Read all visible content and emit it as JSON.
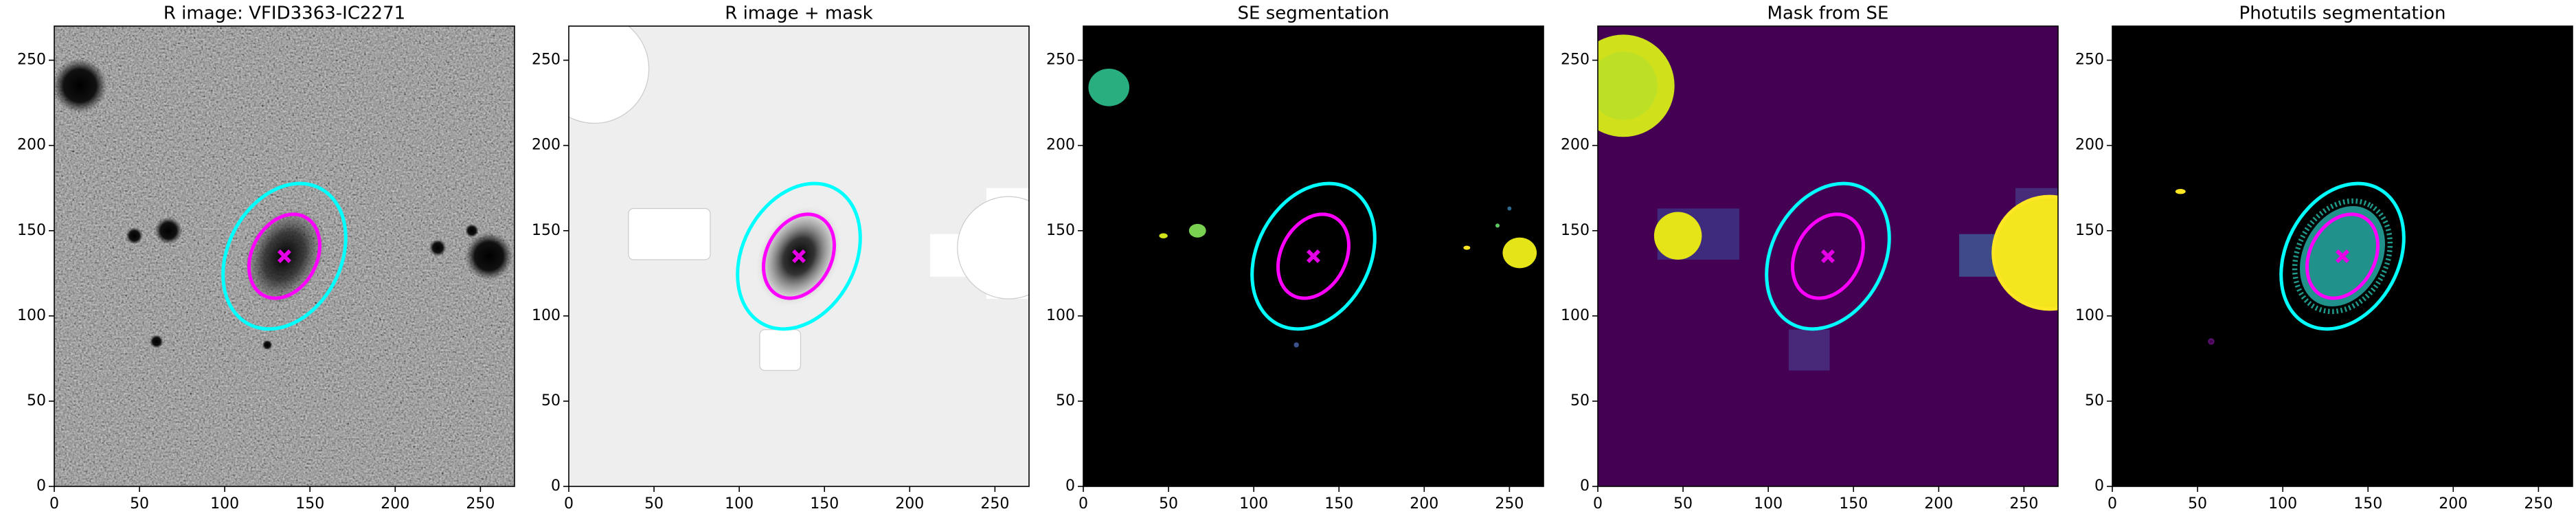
{
  "chart_data": [
    {
      "type": "image",
      "title": "R image: VFID3363-IC2271",
      "xlim": [
        0,
        270
      ],
      "ylim": [
        0,
        270
      ],
      "xticks": [
        0,
        50,
        100,
        150,
        200,
        250
      ],
      "yticks": [
        0,
        50,
        100,
        150,
        200,
        250
      ],
      "ellipses": [
        {
          "x": 135,
          "y": 135,
          "a": 45,
          "b": 33,
          "angle": 62,
          "color": "#00ffff"
        },
        {
          "x": 135,
          "y": 135,
          "a": 26,
          "b": 19,
          "angle": 62,
          "color": "#ff00ff"
        }
      ],
      "marker": {
        "x": 135,
        "y": 135,
        "color": "#e600e6"
      }
    },
    {
      "type": "image",
      "title": "R image + mask",
      "xlim": [
        0,
        270
      ],
      "ylim": [
        0,
        270
      ],
      "xticks": [
        0,
        50,
        100,
        150,
        200,
        250
      ],
      "yticks": [
        0,
        50,
        100,
        150,
        200,
        250
      ],
      "ellipses": [
        {
          "x": 135,
          "y": 135,
          "a": 45,
          "b": 33,
          "angle": 62,
          "color": "#00ffff"
        },
        {
          "x": 135,
          "y": 135,
          "a": 26,
          "b": 19,
          "angle": 62,
          "color": "#ff00ff"
        }
      ],
      "marker": {
        "x": 135,
        "y": 135,
        "color": "#e600e6"
      }
    },
    {
      "type": "image",
      "title": "SE segmentation",
      "xlim": [
        0,
        270
      ],
      "ylim": [
        0,
        270
      ],
      "xticks": [
        0,
        50,
        100,
        150,
        200,
        250
      ],
      "yticks": [
        0,
        50,
        100,
        150,
        200,
        250
      ],
      "ellipses": [
        {
          "x": 135,
          "y": 135,
          "a": 45,
          "b": 33,
          "angle": 62,
          "color": "#00ffff"
        },
        {
          "x": 135,
          "y": 135,
          "a": 26,
          "b": 19,
          "angle": 62,
          "color": "#ff00ff"
        }
      ],
      "marker": {
        "x": 135,
        "y": 135,
        "color": "#e600e6"
      }
    },
    {
      "type": "image",
      "title": "Mask from SE",
      "xlim": [
        0,
        270
      ],
      "ylim": [
        0,
        270
      ],
      "xticks": [
        0,
        50,
        100,
        150,
        200,
        250
      ],
      "yticks": [
        0,
        50,
        100,
        150,
        200,
        250
      ],
      "ellipses": [
        {
          "x": 135,
          "y": 135,
          "a": 45,
          "b": 33,
          "angle": 62,
          "color": "#00ffff"
        },
        {
          "x": 135,
          "y": 135,
          "a": 26,
          "b": 19,
          "angle": 62,
          "color": "#ff00ff"
        }
      ],
      "marker": {
        "x": 135,
        "y": 135,
        "color": "#e600e6"
      }
    },
    {
      "type": "image",
      "title": "Photutils segmentation",
      "xlim": [
        0,
        270
      ],
      "ylim": [
        0,
        270
      ],
      "xticks": [
        0,
        50,
        100,
        150,
        200,
        250
      ],
      "yticks": [
        0,
        50,
        100,
        150,
        200,
        250
      ],
      "ellipses": [
        {
          "x": 135,
          "y": 135,
          "a": 45,
          "b": 33,
          "angle": 62,
          "color": "#00ffff"
        },
        {
          "x": 135,
          "y": 135,
          "a": 26,
          "b": 19,
          "angle": 62,
          "color": "#ff00ff"
        }
      ],
      "marker": {
        "x": 135,
        "y": 135,
        "color": "#e600e6"
      }
    }
  ]
}
